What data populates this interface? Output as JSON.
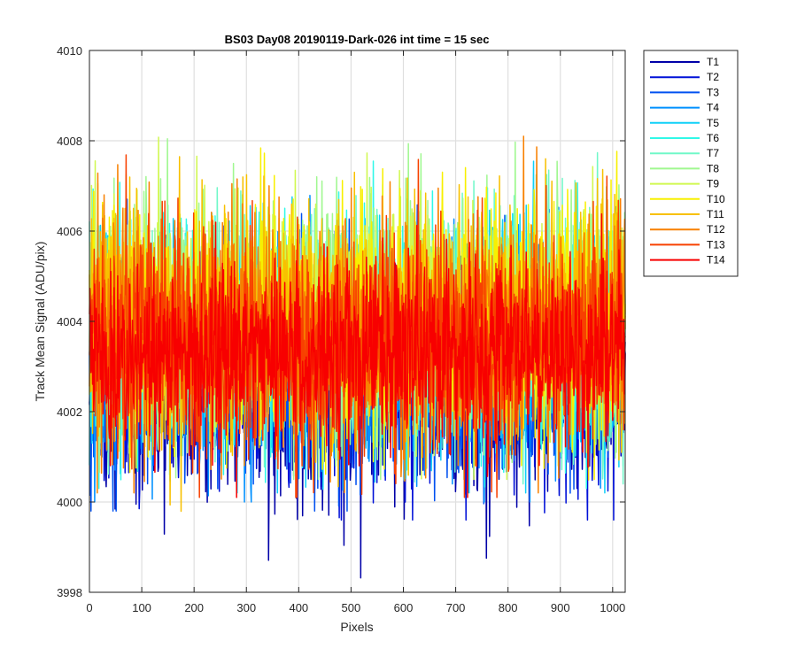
{
  "chart_data": {
    "type": "line",
    "title": "BS03 Day08 20190119-Dark-026 int time = 15 sec",
    "xlabel": "Pixels",
    "ylabel": "Track Mean Signal (ADU/pix)",
    "xlim": [
      0,
      1024
    ],
    "ylim": [
      3998,
      4010
    ],
    "xticks": [
      0,
      100,
      200,
      300,
      400,
      500,
      600,
      700,
      800,
      900,
      1000
    ],
    "yticks": [
      3998,
      4000,
      4002,
      4004,
      4006,
      4008,
      4010
    ],
    "grid": true,
    "legend_position": "outside-top-right",
    "n_points": 1024,
    "series": [
      {
        "name": "T1",
        "color": "#0000A8",
        "mean": 4002.4,
        "amplitude": 1.1,
        "min": 3998.3,
        "max": 4006.9
      },
      {
        "name": "T2",
        "color": "#0010D8",
        "mean": 4002.7,
        "amplitude": 1.1,
        "min": 3999.6,
        "max": 4007.1
      },
      {
        "name": "T3",
        "color": "#0050F0",
        "mean": 4003.0,
        "amplitude": 1.2,
        "min": 3999.8,
        "max": 4007.3
      },
      {
        "name": "T4",
        "color": "#0090FF",
        "mean": 4003.3,
        "amplitude": 1.2,
        "min": 4000.0,
        "max": 4007.5
      },
      {
        "name": "T5",
        "color": "#10D0F8",
        "mean": 4003.6,
        "amplitude": 1.3,
        "min": 4000.2,
        "max": 4009.0
      },
      {
        "name": "T6",
        "color": "#30F8E8",
        "mean": 4003.8,
        "amplitude": 1.3,
        "min": 4000.3,
        "max": 4008.4
      },
      {
        "name": "T7",
        "color": "#70F8C8",
        "mean": 4003.9,
        "amplitude": 1.3,
        "min": 4000.4,
        "max": 4008.2
      },
      {
        "name": "T8",
        "color": "#A0F890",
        "mean": 4004.0,
        "amplitude": 1.3,
        "min": 4000.5,
        "max": 4008.1
      },
      {
        "name": "T9",
        "color": "#D0F850",
        "mean": 4004.1,
        "amplitude": 1.3,
        "min": 4000.5,
        "max": 4008.1
      },
      {
        "name": "T10",
        "color": "#F8F000",
        "mean": 4004.1,
        "amplitude": 1.3,
        "min": 4000.5,
        "max": 4008.0
      },
      {
        "name": "T11",
        "color": "#F8C000",
        "mean": 4004.0,
        "amplitude": 1.3,
        "min": 3999.2,
        "max": 4008.0
      },
      {
        "name": "T12",
        "color": "#F88000",
        "mean": 4003.8,
        "amplitude": 1.3,
        "min": 4000.2,
        "max": 4008.1
      },
      {
        "name": "T13",
        "color": "#F84000",
        "mean": 4003.6,
        "amplitude": 1.2,
        "min": 4000.1,
        "max": 4008.0
      },
      {
        "name": "T14",
        "color": "#F80000",
        "mean": 4003.3,
        "amplitude": 1.0,
        "min": 4000.1,
        "max": 4006.9
      }
    ]
  }
}
